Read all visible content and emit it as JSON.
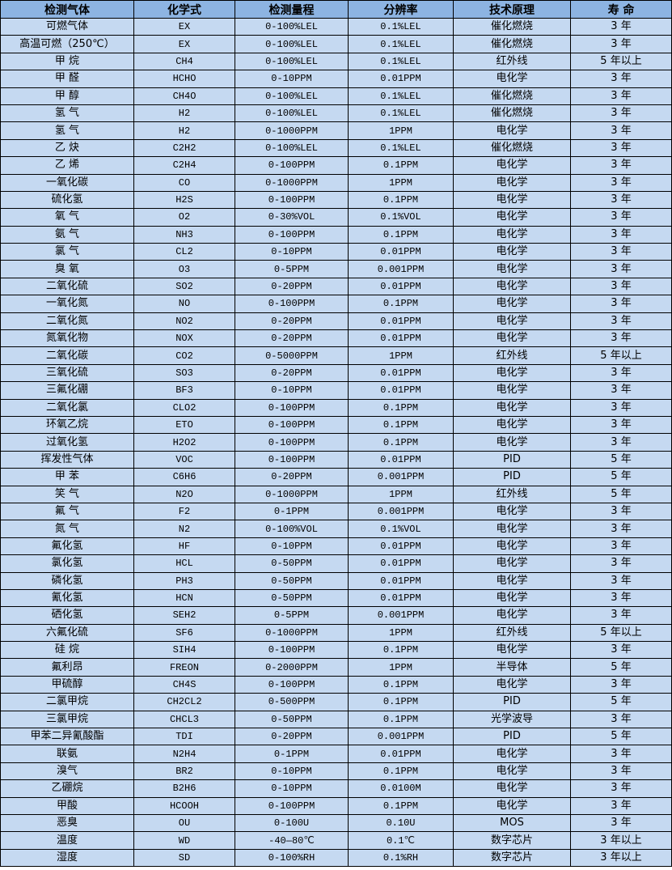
{
  "table": {
    "headers": [
      "检测气体",
      "化学式",
      "检测量程",
      "分辨率",
      "技术原理",
      "寿 命"
    ],
    "rows": [
      [
        "可燃气体",
        "EX",
        "0-100%LEL",
        "0.1%LEL",
        "催化燃烧",
        "3 年"
      ],
      [
        "高温可燃（250℃）",
        "EX",
        "0-100%LEL",
        "0.1%LEL",
        "催化燃烧",
        "3 年"
      ],
      [
        "甲 烷",
        "CH4",
        "0-100%LEL",
        "0.1%LEL",
        "红外线",
        "5 年以上"
      ],
      [
        "甲 醛",
        "HCHO",
        "0-10PPM",
        "0.01PPM",
        "电化学",
        "3 年"
      ],
      [
        "甲 醇",
        "CH4O",
        "0-100%LEL",
        "0.1%LEL",
        "催化燃烧",
        "3 年"
      ],
      [
        "氢 气",
        "H2",
        "0-100%LEL",
        "0.1%LEL",
        "催化燃烧",
        "3 年"
      ],
      [
        "氢 气",
        "H2",
        "0-1000PPM",
        "1PPM",
        "电化学",
        "3 年"
      ],
      [
        "乙 炔",
        "C2H2",
        "0-100%LEL",
        "0.1%LEL",
        "催化燃烧",
        "3 年"
      ],
      [
        "乙 烯",
        "C2H4",
        "0-100PPM",
        "0.1PPM",
        "电化学",
        "3 年"
      ],
      [
        "一氧化碳",
        "CO",
        "0-1000PPM",
        "1PPM",
        "电化学",
        "3 年"
      ],
      [
        "硫化氢",
        "H2S",
        "0-100PPM",
        "0.1PPM",
        "电化学",
        "3 年"
      ],
      [
        "氧 气",
        "O2",
        "0-30%VOL",
        "0.1%VOL",
        "电化学",
        "3 年"
      ],
      [
        "氨 气",
        "NH3",
        "0-100PPM",
        "0.1PPM",
        "电化学",
        "3 年"
      ],
      [
        "氯 气",
        "CL2",
        "0-10PPM",
        "0.01PPM",
        "电化学",
        "3 年"
      ],
      [
        "臭 氧",
        "O3",
        "0-5PPM",
        "0.001PPM",
        "电化学",
        "3 年"
      ],
      [
        "二氧化硫",
        "SO2",
        "0-20PPM",
        "0.01PPM",
        "电化学",
        "3 年"
      ],
      [
        "一氧化氮",
        "NO",
        "0-100PPM",
        "0.1PPM",
        "电化学",
        "3 年"
      ],
      [
        "二氧化氮",
        "NO2",
        "0-20PPM",
        "0.01PPM",
        "电化学",
        "3 年"
      ],
      [
        "氮氧化物",
        "NOX",
        "0-20PPM",
        "0.01PPM",
        "电化学",
        "3 年"
      ],
      [
        "二氧化碳",
        "CO2",
        "0-5000PPM",
        "1PPM",
        "红外线",
        "5 年以上"
      ],
      [
        "三氧化硫",
        "SO3",
        "0-20PPM",
        "0.01PPM",
        "电化学",
        "3 年"
      ],
      [
        "三氟化硼",
        "BF3",
        "0-10PPM",
        "0.01PPM",
        "电化学",
        "3 年"
      ],
      [
        "二氧化氯",
        "CLO2",
        "0-100PPM",
        "0.1PPM",
        "电化学",
        "3 年"
      ],
      [
        "环氧乙烷",
        "ETO",
        "0-100PPM",
        "0.1PPM",
        "电化学",
        "3 年"
      ],
      [
        "过氧化氢",
        "H2O2",
        "0-100PPM",
        "0.1PPM",
        "电化学",
        "3 年"
      ],
      [
        "挥发性气体",
        "VOC",
        "0-100PPM",
        "0.01PPM",
        "PID",
        "5 年"
      ],
      [
        "甲 苯",
        "C6H6",
        "0-20PPM",
        "0.001PPM",
        "PID",
        "5 年"
      ],
      [
        "笑 气",
        "N2O",
        "0-1000PPM",
        "1PPM",
        "红外线",
        "5 年"
      ],
      [
        "氟 气",
        "F2",
        "0-1PPM",
        "0.001PPM",
        "电化学",
        "3 年"
      ],
      [
        "氮 气",
        "N2",
        "0-100%VOL",
        "0.1%VOL",
        "电化学",
        "3 年"
      ],
      [
        "氟化氢",
        "HF",
        "0-10PPM",
        "0.01PPM",
        "电化学",
        "3 年"
      ],
      [
        "氯化氢",
        "HCL",
        "0-50PPM",
        "0.01PPM",
        "电化学",
        "3 年"
      ],
      [
        "磷化氢",
        "PH3",
        "0-50PPM",
        "0.01PPM",
        "电化学",
        "3 年"
      ],
      [
        "氰化氢",
        "HCN",
        "0-50PPM",
        "0.01PPM",
        "电化学",
        "3 年"
      ],
      [
        "硒化氢",
        "SEH2",
        "0-5PPM",
        "0.001PPM",
        "电化学",
        "3 年"
      ],
      [
        "六氟化硫",
        "SF6",
        "0-1000PPM",
        "1PPM",
        "红外线",
        "5 年以上"
      ],
      [
        "硅 烷",
        "SIH4",
        "0-100PPM",
        "0.1PPM",
        "电化学",
        "3 年"
      ],
      [
        "氟利昂",
        "FREON",
        "0-2000PPM",
        "1PPM",
        "半导体",
        "5 年"
      ],
      [
        "甲硫醇",
        "CH4S",
        "0-100PPM",
        "0.1PPM",
        "电化学",
        "3 年"
      ],
      [
        "二氯甲烷",
        "CH2CL2",
        "0-500PPM",
        "0.1PPM",
        "PID",
        "5 年"
      ],
      [
        "三氯甲烷",
        "CHCL3",
        "0-50PPM",
        "0.1PPM",
        "光学波导",
        "3 年"
      ],
      [
        "甲苯二异氰酸酯",
        "TDI",
        "0-20PPM",
        "0.001PPM",
        "PID",
        "5 年"
      ],
      [
        "联氨",
        "N2H4",
        "0-1PPM",
        "0.01PPM",
        "电化学",
        "3 年"
      ],
      [
        "溴气",
        "BR2",
        "0-10PPM",
        "0.1PPM",
        "电化学",
        "3 年"
      ],
      [
        "乙硼烷",
        "B2H6",
        "0-10PPM",
        "0.0100M",
        "电化学",
        "3 年"
      ],
      [
        "甲酸",
        "HCOOH",
        "0-100PPM",
        "0.1PPM",
        "电化学",
        "3 年"
      ],
      [
        "恶臭",
        "OU",
        "0-100U",
        "0.10U",
        "MOS",
        "3 年"
      ],
      [
        "温度",
        "WD",
        "-40—80℃",
        "0.1℃",
        "数字芯片",
        "3 年以上"
      ],
      [
        "湿度",
        "SD",
        "0-100%RH",
        "0.1%RH",
        "数字芯片",
        "3 年以上"
      ]
    ]
  }
}
